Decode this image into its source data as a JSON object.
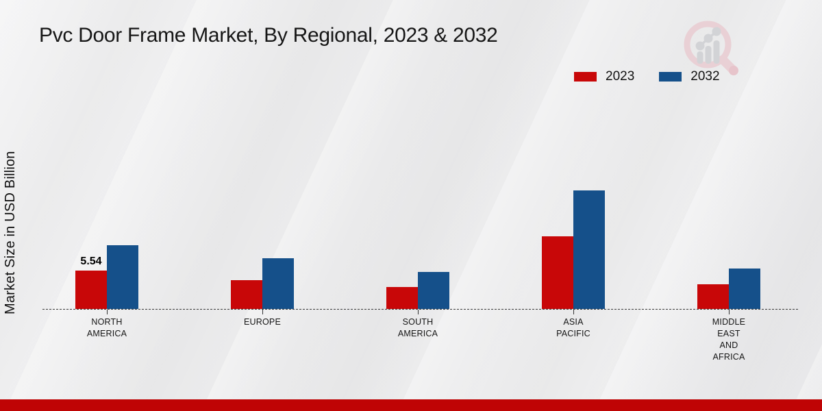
{
  "chart_data": {
    "type": "bar",
    "title": "Pvc Door Frame Market, By Regional, 2023 & 2032",
    "xlabel": "",
    "ylabel": "Market Size in USD Billion",
    "ylim": [
      0,
      18
    ],
    "grid": false,
    "legend_position": "top-right",
    "categories": [
      "NORTH AMERICA",
      "EUROPE",
      "SOUTH AMERICA",
      "ASIA PACIFIC",
      "MIDDLE EAST AND AFRICA"
    ],
    "label_lines": [
      [
        "NORTH",
        "AMERICA"
      ],
      [
        "EUROPE"
      ],
      [
        "SOUTH",
        "AMERICA"
      ],
      [
        "ASIA",
        "PACIFIC"
      ],
      [
        "MIDDLE",
        "EAST",
        "AND",
        "AFRICA"
      ]
    ],
    "series": [
      {
        "name": "2023",
        "color": "#c80708",
        "values": [
          5.54,
          4.2,
          3.2,
          10.5,
          3.6
        ]
      },
      {
        "name": "2032",
        "color": "#15508a",
        "values": [
          9.2,
          7.3,
          5.3,
          17.1,
          5.8
        ]
      }
    ],
    "annotations": [
      {
        "series": "2023",
        "series_index": 0,
        "category": "NORTH AMERICA",
        "category_index": 0,
        "text": "5.54"
      }
    ]
  },
  "footer": {
    "bar_color": "#bf0405"
  },
  "logo": {
    "ring_color": "#e9d0d5",
    "chart_color": "#d2d3d6"
  }
}
